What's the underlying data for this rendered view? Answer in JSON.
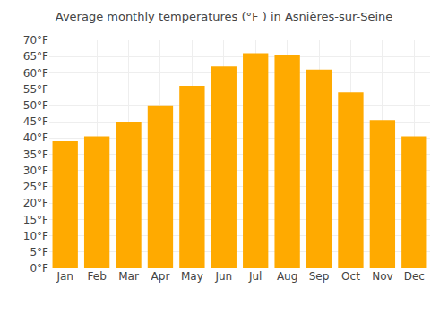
{
  "chart_data": {
    "type": "bar",
    "title": "Average monthly temperatures (°F ) in Asnières-sur-Seine",
    "categories": [
      "Jan",
      "Feb",
      "Mar",
      "Apr",
      "May",
      "Jun",
      "Jul",
      "Aug",
      "Sep",
      "Oct",
      "Nov",
      "Dec"
    ],
    "values": [
      39,
      40.5,
      45,
      50,
      56,
      62,
      66,
      65.5,
      61,
      54,
      45.5,
      40.5
    ],
    "color": "#FFAA00",
    "ylim": [
      0,
      70
    ],
    "yticks": [
      {
        "value": 0,
        "label": "0°F"
      },
      {
        "value": 5,
        "label": "5°F"
      },
      {
        "value": 10,
        "label": "10°F"
      },
      {
        "value": 15,
        "label": "15°F"
      },
      {
        "value": 20,
        "label": "20°F"
      },
      {
        "value": 25,
        "label": "25°F"
      },
      {
        "value": 30,
        "label": "30°F"
      },
      {
        "value": 35,
        "label": "35°F"
      },
      {
        "value": 40,
        "label": "40°F"
      },
      {
        "value": 45,
        "label": "45°F"
      },
      {
        "value": 50,
        "label": "50°F"
      },
      {
        "value": 55,
        "label": "55°F"
      },
      {
        "value": 60,
        "label": "60°F"
      },
      {
        "value": 65,
        "label": "65°F"
      },
      {
        "value": 70,
        "label": "70°F"
      }
    ],
    "grid": true
  }
}
